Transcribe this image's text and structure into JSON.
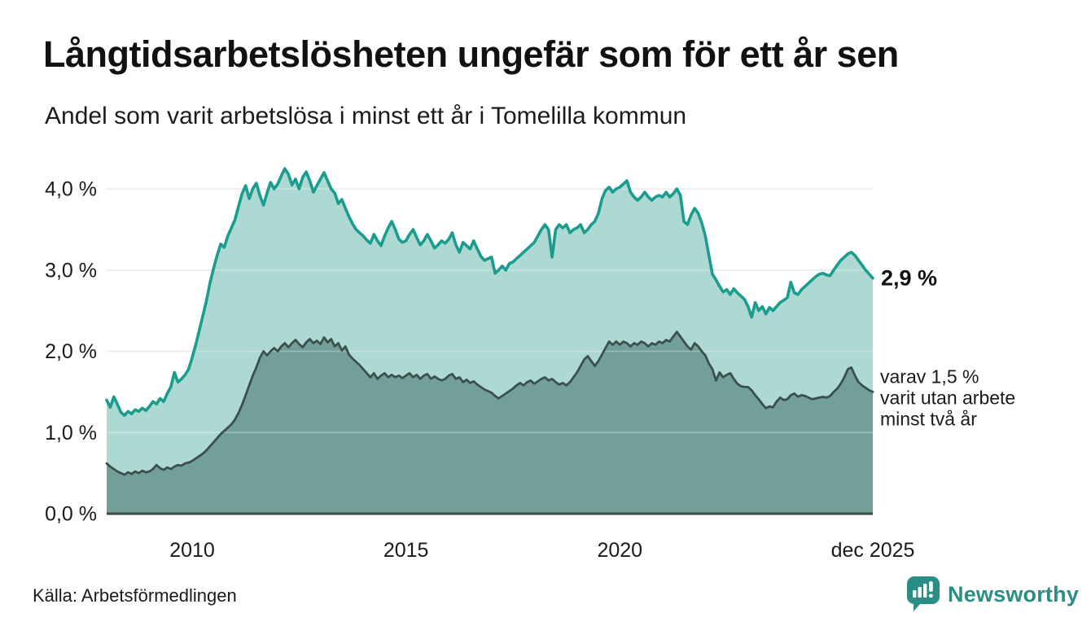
{
  "chart_data": {
    "type": "area",
    "title": "Långtidsarbetslösheten ungefär som för ett år sen",
    "subtitle": "Andel som varit arbetslösa i minst ett år i Tomelilla kommun",
    "x_unit": "year (monthly data points)",
    "x_domain": [
      2008,
      2025.9167
    ],
    "x_step": 0.0833333,
    "ylim": [
      0,
      4.45
    ],
    "grid": "horizontal",
    "legend": "none — direct labels at right end of series",
    "xticks": [
      {
        "label": "2010",
        "x": 2010
      },
      {
        "label": "2015",
        "x": 2015
      },
      {
        "label": "2020",
        "x": 2020
      },
      {
        "label": "dec 2025",
        "x": 2025.9167
      }
    ],
    "yticks": [
      {
        "label": "0,0 %",
        "value": 0
      },
      {
        "label": "1,0 %",
        "value": 1
      },
      {
        "label": "2,0 %",
        "value": 2
      },
      {
        "label": "3,0 %",
        "value": 3
      },
      {
        "label": "4,0 %",
        "value": 4
      }
    ],
    "colors": {
      "line_total": "#1a9c8e",
      "fill_total": "#aed9d2",
      "line_two_years": "#3a504e",
      "fill_two_years": "#739f99",
      "gridline": "#e2e2e6",
      "axis": "#3b4a49",
      "brand_teal": "#2b8e86"
    },
    "series": [
      {
        "name": "Andel som varit arbetslösa i minst ett år",
        "end_label": "2,9 %",
        "values": [
          1.4,
          1.31,
          1.44,
          1.35,
          1.25,
          1.21,
          1.26,
          1.23,
          1.28,
          1.26,
          1.3,
          1.27,
          1.32,
          1.38,
          1.35,
          1.42,
          1.38,
          1.48,
          1.56,
          1.74,
          1.62,
          1.66,
          1.71,
          1.78,
          1.92,
          2.08,
          2.26,
          2.44,
          2.62,
          2.84,
          3.02,
          3.18,
          3.32,
          3.28,
          3.42,
          3.52,
          3.62,
          3.78,
          3.94,
          4.04,
          3.88,
          4.0,
          4.07,
          3.92,
          3.8,
          3.95,
          4.08,
          4.0,
          4.06,
          4.16,
          4.25,
          4.18,
          4.05,
          4.12,
          4.0,
          4.14,
          4.21,
          4.1,
          3.96,
          4.04,
          4.12,
          4.2,
          4.1,
          4.0,
          3.95,
          3.82,
          3.87,
          3.76,
          3.66,
          3.57,
          3.5,
          3.46,
          3.42,
          3.37,
          3.33,
          3.44,
          3.36,
          3.3,
          3.42,
          3.52,
          3.6,
          3.5,
          3.38,
          3.34,
          3.36,
          3.44,
          3.5,
          3.4,
          3.31,
          3.36,
          3.44,
          3.36,
          3.27,
          3.31,
          3.36,
          3.33,
          3.38,
          3.46,
          3.31,
          3.22,
          3.34,
          3.3,
          3.26,
          3.36,
          3.26,
          3.17,
          3.12,
          3.14,
          3.16,
          2.96,
          3.0,
          3.05,
          3.0,
          3.08,
          3.1,
          3.14,
          3.18,
          3.22,
          3.26,
          3.3,
          3.34,
          3.42,
          3.5,
          3.56,
          3.5,
          3.16,
          3.5,
          3.56,
          3.52,
          3.56,
          3.46,
          3.5,
          3.52,
          3.56,
          3.46,
          3.5,
          3.56,
          3.6,
          3.7,
          3.88,
          3.98,
          4.02,
          3.96,
          4.0,
          4.02,
          4.06,
          4.1,
          3.96,
          3.9,
          3.86,
          3.9,
          3.96,
          3.9,
          3.86,
          3.9,
          3.92,
          3.9,
          3.96,
          3.9,
          3.94,
          4.0,
          3.92,
          3.6,
          3.56,
          3.68,
          3.76,
          3.7,
          3.58,
          3.42,
          3.18,
          2.95,
          2.88,
          2.8,
          2.73,
          2.76,
          2.7,
          2.77,
          2.72,
          2.68,
          2.64,
          2.55,
          2.42,
          2.6,
          2.5,
          2.55,
          2.46,
          2.54,
          2.5,
          2.55,
          2.6,
          2.63,
          2.66,
          2.85,
          2.72,
          2.7,
          2.76,
          2.8,
          2.84,
          2.88,
          2.92,
          2.95,
          2.96,
          2.94,
          2.93,
          3.0,
          3.06,
          3.12,
          3.16,
          3.2,
          3.22,
          3.18,
          3.12,
          3.06,
          3.0,
          2.95,
          2.9
        ]
      },
      {
        "name": "varav utan arbete minst två år",
        "end_label": "varav 1,5 % varit utan arbete minst två år",
        "values": [
          0.62,
          0.58,
          0.55,
          0.52,
          0.5,
          0.48,
          0.51,
          0.49,
          0.52,
          0.5,
          0.53,
          0.51,
          0.52,
          0.55,
          0.6,
          0.56,
          0.54,
          0.57,
          0.55,
          0.58,
          0.6,
          0.59,
          0.62,
          0.63,
          0.65,
          0.68,
          0.71,
          0.74,
          0.78,
          0.83,
          0.88,
          0.93,
          0.98,
          1.02,
          1.06,
          1.1,
          1.16,
          1.24,
          1.34,
          1.46,
          1.58,
          1.7,
          1.8,
          1.92,
          2.0,
          1.95,
          2.0,
          2.04,
          2.0,
          2.06,
          2.1,
          2.05,
          2.1,
          2.14,
          2.09,
          2.05,
          2.11,
          2.15,
          2.1,
          2.13,
          2.09,
          2.17,
          2.11,
          2.15,
          2.06,
          2.1,
          2.01,
          2.06,
          1.96,
          1.91,
          1.87,
          1.83,
          1.78,
          1.73,
          1.68,
          1.73,
          1.66,
          1.7,
          1.73,
          1.68,
          1.71,
          1.68,
          1.7,
          1.67,
          1.7,
          1.73,
          1.68,
          1.71,
          1.66,
          1.7,
          1.72,
          1.66,
          1.69,
          1.66,
          1.64,
          1.66,
          1.7,
          1.72,
          1.66,
          1.68,
          1.62,
          1.65,
          1.61,
          1.63,
          1.59,
          1.56,
          1.53,
          1.51,
          1.49,
          1.45,
          1.42,
          1.45,
          1.48,
          1.51,
          1.54,
          1.58,
          1.61,
          1.58,
          1.62,
          1.64,
          1.6,
          1.63,
          1.66,
          1.68,
          1.64,
          1.66,
          1.62,
          1.59,
          1.61,
          1.58,
          1.62,
          1.68,
          1.74,
          1.82,
          1.9,
          1.94,
          1.88,
          1.82,
          1.88,
          1.96,
          2.04,
          2.12,
          2.08,
          2.12,
          2.08,
          2.12,
          2.1,
          2.06,
          2.1,
          2.08,
          2.12,
          2.1,
          2.06,
          2.1,
          2.08,
          2.12,
          2.1,
          2.14,
          2.12,
          2.18,
          2.24,
          2.18,
          2.12,
          2.06,
          2.02,
          2.1,
          2.06,
          2.0,
          1.95,
          1.85,
          1.78,
          1.64,
          1.74,
          1.68,
          1.71,
          1.73,
          1.66,
          1.6,
          1.57,
          1.56,
          1.56,
          1.52,
          1.46,
          1.41,
          1.35,
          1.3,
          1.32,
          1.31,
          1.38,
          1.43,
          1.4,
          1.41,
          1.46,
          1.48,
          1.44,
          1.46,
          1.45,
          1.43,
          1.41,
          1.42,
          1.43,
          1.44,
          1.43,
          1.45,
          1.5,
          1.54,
          1.6,
          1.68,
          1.78,
          1.8,
          1.7,
          1.62,
          1.58,
          1.55,
          1.52,
          1.5
        ]
      }
    ],
    "annotations": {
      "end_value_label": "2,9 %",
      "end_value": 2.9,
      "sub_value": 1.5,
      "sub_label_lines": [
        "varav 1,5 %",
        "varit utan arbete",
        "minst två år"
      ]
    }
  },
  "footer": {
    "source": "Källa: Arbetsförmedlingen",
    "brand": "Newsworthy"
  }
}
